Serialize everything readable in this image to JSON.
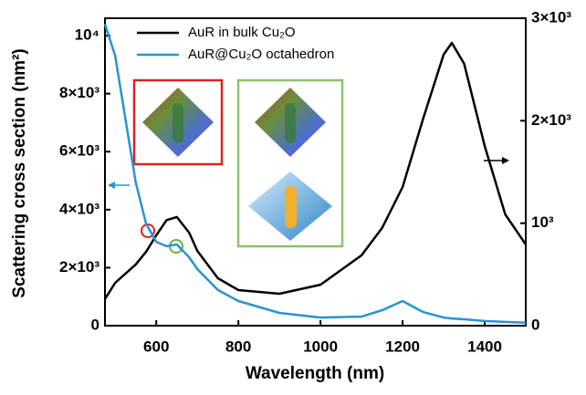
{
  "chart_data": {
    "type": "line",
    "xlabel": "Wavelength (nm)",
    "ylabel": "Scattering cross section (nm²)",
    "x": [
      475,
      500,
      550,
      575,
      600,
      625,
      650,
      680,
      700,
      750,
      800,
      900,
      1000,
      1100,
      1150,
      1200,
      1250,
      1300,
      1320,
      1350,
      1400,
      1450,
      1500
    ],
    "series": [
      {
        "name": "AuR in bulk Cu₂O",
        "color": "#000000",
        "axis": "y2",
        "values": [
          260,
          418,
          597,
          720,
          882,
          1030,
          1060,
          908,
          730,
          463,
          347,
          312,
          400,
          686,
          953,
          1353,
          2021,
          2645,
          2760,
          2556,
          1754,
          1086,
          792
        ]
      },
      {
        "name": "AuR@Cu₂O octahedron",
        "color": "#2a93d0",
        "values": [
          10400,
          9300,
          4940,
          3520,
          2890,
          2740,
          2800,
          2360,
          1950,
          1230,
          850,
          440,
          280,
          310,
          530,
          850,
          470,
          280,
          250,
          220,
          160,
          130,
          100
        ]
      }
    ],
    "xlim": [
      475,
      1500
    ],
    "xticks": [
      600,
      800,
      1000,
      1200,
      1400
    ],
    "ylim": [
      0,
      10600
    ],
    "yticks": [
      0,
      {
        "value": 2000,
        "label": "2×10³"
      },
      {
        "value": 4000,
        "label": "4×10³"
      },
      {
        "value": 6000,
        "label": "6×10³"
      },
      {
        "value": 8000,
        "label": "8×10³"
      },
      {
        "value": 10000,
        "label": "10⁴"
      }
    ],
    "y2lim": [
      0,
      3000
    ],
    "y2ticks": [
      0,
      {
        "value": 1000,
        "label": "10³"
      },
      {
        "value": 2000,
        "label": "2×10³"
      },
      {
        "value": 3000,
        "label": "3×10³"
      }
    ],
    "legend": "upper left"
  }
}
